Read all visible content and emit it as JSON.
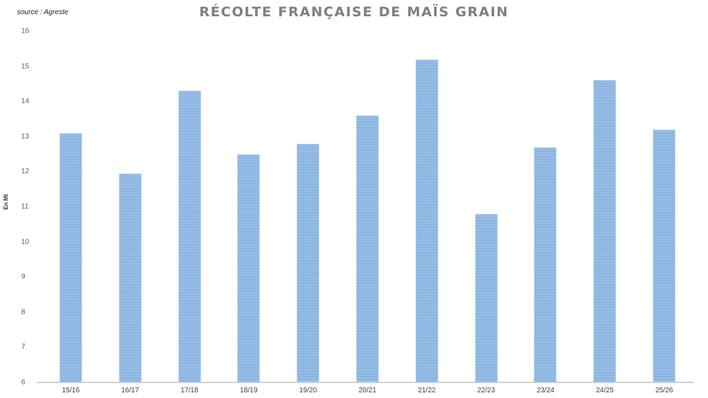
{
  "header": {
    "source": "source : Agreste",
    "title": "RÉCOLTE FRANÇAISE DE MAÏS GRAIN"
  },
  "chart_data": {
    "type": "bar",
    "title": "RÉCOLTE FRANÇAISE DE MAÏS GRAIN",
    "subtitle": "source : Agreste",
    "xlabel": "",
    "ylabel": "En Mt",
    "categories": [
      "15/16",
      "16/17",
      "17/18",
      "18/19",
      "19/20",
      "20/21",
      "21/22",
      "22/23",
      "23/24",
      "24/25",
      "25/26"
    ],
    "values": [
      13.1,
      11.95,
      14.3,
      12.5,
      12.8,
      13.6,
      15.2,
      10.8,
      12.7,
      14.6,
      13.2
    ],
    "ylim": [
      6,
      16
    ],
    "yticks": [
      6,
      7,
      8,
      9,
      10,
      11,
      12,
      13,
      14,
      15,
      16
    ],
    "grid": false,
    "legend": null,
    "bar_color": "#95bde6"
  }
}
